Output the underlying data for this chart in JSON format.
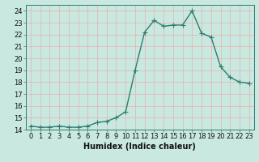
{
  "x": [
    0,
    1,
    2,
    3,
    4,
    5,
    6,
    7,
    8,
    9,
    10,
    11,
    12,
    13,
    14,
    15,
    16,
    17,
    18,
    19,
    20,
    21,
    22,
    23
  ],
  "y": [
    14.3,
    14.2,
    14.2,
    14.3,
    14.2,
    14.2,
    14.3,
    14.6,
    14.7,
    15.0,
    15.5,
    19.0,
    22.2,
    23.2,
    22.7,
    22.8,
    22.8,
    24.0,
    22.1,
    21.8,
    19.3,
    18.4,
    18.0,
    17.9
  ],
  "line_color": "#2e7d6e",
  "marker_color": "#2e7d6e",
  "bg_color": "#c8e8e0",
  "grid_major_color": "#e8b0b0",
  "grid_minor_color": "#ddd0d0",
  "xlabel": "Humidex (Indice chaleur)",
  "xlim": [
    -0.5,
    23.5
  ],
  "ylim": [
    14,
    24.5
  ],
  "yticks": [
    14,
    15,
    16,
    17,
    18,
    19,
    20,
    21,
    22,
    23,
    24
  ],
  "xticks": [
    0,
    1,
    2,
    3,
    4,
    5,
    6,
    7,
    8,
    9,
    10,
    11,
    12,
    13,
    14,
    15,
    16,
    17,
    18,
    19,
    20,
    21,
    22,
    23
  ],
  "xtick_labels": [
    "0",
    "1",
    "2",
    "3",
    "4",
    "5",
    "6",
    "7",
    "8",
    "9",
    "10",
    "11",
    "12",
    "13",
    "14",
    "15",
    "16",
    "17",
    "18",
    "19",
    "20",
    "21",
    "22",
    "23"
  ],
  "marker": "+",
  "linewidth": 1.0,
  "markersize": 4,
  "markeredgewidth": 0.8,
  "xlabel_fontsize": 7,
  "tick_fontsize": 6,
  "spine_color": "#2e7d6e"
}
